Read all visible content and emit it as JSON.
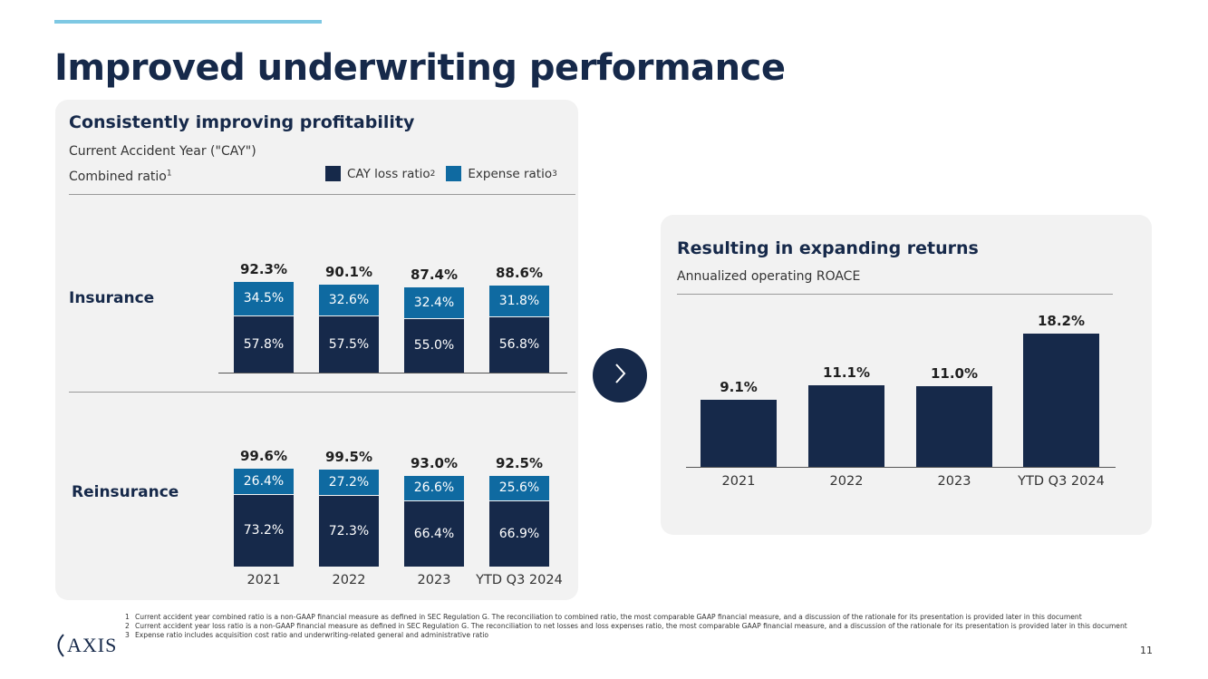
{
  "header": {
    "title": "Improved underwriting performance"
  },
  "left_panel": {
    "heading": "Consistently improving profitability",
    "subtitle": "Current Accident Year (\"CAY\")",
    "metric_label": "Combined ratio",
    "metric_sup": "1",
    "legend": [
      {
        "label": "CAY loss ratio",
        "sup": "2",
        "color": "#16294a"
      },
      {
        "label": "Expense ratio",
        "sup": "3",
        "color": "#0f6aa1"
      }
    ],
    "rows": [
      {
        "label": "Insurance"
      },
      {
        "label": "Reinsurance"
      }
    ]
  },
  "arrow": {
    "icon": "chevron-right-icon"
  },
  "right_panel": {
    "heading": "Resulting in expanding returns",
    "subtitle": "Annualized operating ROACE"
  },
  "chart_data": [
    {
      "type": "bar",
      "stacked": true,
      "title": "Insurance",
      "categories": [
        "2021",
        "2022",
        "2023",
        "YTD Q3 2024"
      ],
      "series": [
        {
          "name": "CAY loss ratio",
          "values": [
            57.8,
            57.5,
            55.0,
            56.8
          ],
          "labels": [
            "57.8%",
            "57.5%",
            "55.0%",
            "56.8%"
          ],
          "color": "#16294a"
        },
        {
          "name": "Expense ratio",
          "values": [
            34.5,
            32.6,
            32.4,
            31.8
          ],
          "labels": [
            "34.5%",
            "32.6%",
            "32.4%",
            "31.8%"
          ],
          "color": "#0f6aa1"
        }
      ],
      "totals": [
        92.3,
        90.1,
        87.4,
        88.6
      ],
      "total_labels": [
        "92.3%",
        "90.1%",
        "87.4%",
        "88.6%"
      ]
    },
    {
      "type": "bar",
      "stacked": true,
      "title": "Reinsurance",
      "categories": [
        "2021",
        "2022",
        "2023",
        "YTD Q3 2024"
      ],
      "series": [
        {
          "name": "CAY loss ratio",
          "values": [
            73.2,
            72.3,
            66.4,
            66.9
          ],
          "labels": [
            "73.2%",
            "72.3%",
            "66.4%",
            "66.9%"
          ],
          "color": "#16294a"
        },
        {
          "name": "Expense ratio",
          "values": [
            26.4,
            27.2,
            26.6,
            25.6
          ],
          "labels": [
            "26.4%",
            "27.2%",
            "26.6%",
            "25.6%"
          ],
          "color": "#0f6aa1"
        }
      ],
      "totals": [
        99.6,
        99.5,
        93.0,
        92.5
      ],
      "total_labels": [
        "99.6%",
        "99.5%",
        "93.0%",
        "92.5%"
      ]
    },
    {
      "type": "bar",
      "title": "Annualized operating ROACE",
      "categories": [
        "2021",
        "2022",
        "2023",
        "YTD Q3 2024"
      ],
      "values": [
        9.1,
        11.1,
        11.0,
        18.2
      ],
      "labels": [
        "9.1%",
        "11.1%",
        "11.0%",
        "18.2%"
      ],
      "color": "#16294a"
    }
  ],
  "footer": {
    "logo_text": "AXIS",
    "footnotes": [
      {
        "num": "1",
        "text": "Current accident year combined ratio is a non-GAAP financial measure as defined in SEC Regulation G. The reconciliation to combined ratio, the most comparable GAAP financial measure, and a discussion of the rationale for its presentation is provided later in this document"
      },
      {
        "num": "2",
        "text": "Current accident year loss ratio is a non-GAAP financial measure as defined in SEC Regulation G. The reconciliation to net losses and loss expenses ratio, the most comparable GAAP financial measure, and a discussion of the rationale for its presentation is provided later in this document"
      },
      {
        "num": "3",
        "text": "Expense ratio includes acquisition cost ratio and underwriting-related general and administrative ratio"
      }
    ],
    "page_number": "11"
  }
}
